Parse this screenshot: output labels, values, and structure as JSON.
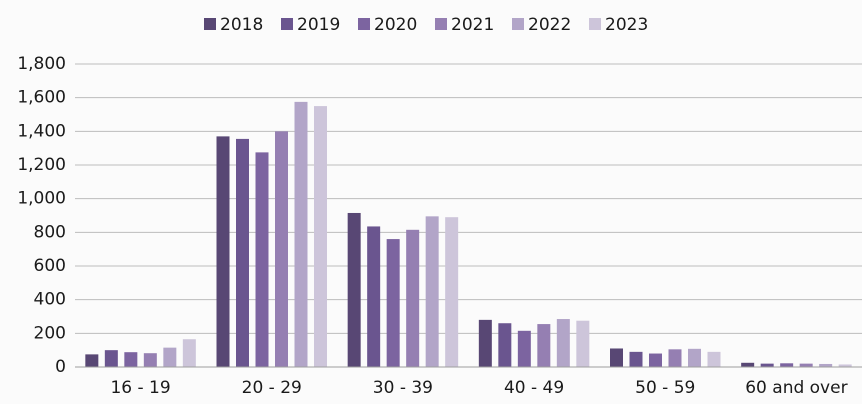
{
  "chart_data": {
    "type": "bar",
    "categories": [
      "16 - 19",
      "20 - 29",
      "30 - 39",
      "40 - 49",
      "50 - 59",
      "60 and over"
    ],
    "series": [
      {
        "name": "2018",
        "color": "#584774",
        "values": [
          75,
          1370,
          915,
          280,
          110,
          25
        ]
      },
      {
        "name": "2019",
        "color": "#6a558f",
        "values": [
          100,
          1355,
          835,
          260,
          90,
          20
        ]
      },
      {
        "name": "2020",
        "color": "#7c64a0",
        "values": [
          88,
          1275,
          760,
          215,
          80,
          22
        ]
      },
      {
        "name": "2021",
        "color": "#957fb2",
        "values": [
          82,
          1400,
          815,
          255,
          105,
          20
        ]
      },
      {
        "name": "2022",
        "color": "#b2a5c8",
        "values": [
          115,
          1575,
          895,
          285,
          108,
          18
        ]
      },
      {
        "name": "2023",
        "color": "#cdc5da",
        "values": [
          165,
          1550,
          890,
          275,
          90,
          15
        ]
      }
    ],
    "ylim": [
      0,
      1800
    ],
    "yticks": [
      0,
      200,
      400,
      600,
      800,
      {
        "value": 1000,
        "label": "1,000"
      },
      {
        "value": 1200,
        "label": "1,200"
      },
      {
        "value": 1400,
        "label": "1,400"
      },
      {
        "value": 1600,
        "label": "1,600"
      },
      {
        "value": 1800,
        "label": "1,800"
      }
    ],
    "grid": true,
    "legend": "top"
  }
}
